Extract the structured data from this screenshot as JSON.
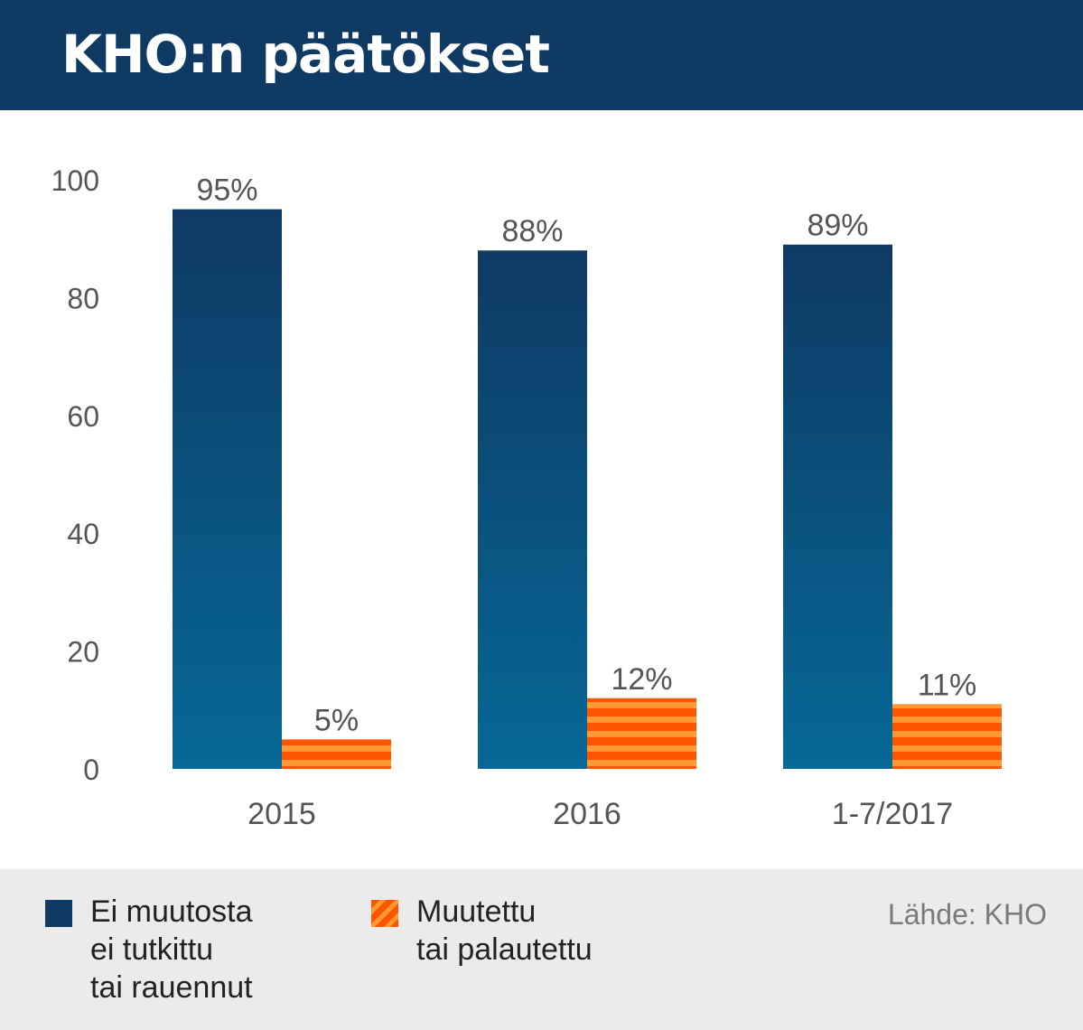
{
  "header": {
    "title": "KHO:n päätökset"
  },
  "chart_data": {
    "type": "bar",
    "categories": [
      "2015",
      "2016",
      "1-7/2017"
    ],
    "series": [
      {
        "name": "Ei muutosta ei tutkittu tai rauennut",
        "values": [
          95,
          88,
          89
        ],
        "labels": [
          "95%",
          "88%",
          "89%"
        ]
      },
      {
        "name": "Muutettu tai palautettu",
        "values": [
          5,
          12,
          11
        ],
        "labels": [
          "5%",
          "12%",
          "11%"
        ]
      }
    ],
    "ylim": [
      0,
      100
    ],
    "yticks": [
      "0",
      "20",
      "40",
      "60",
      "80",
      "100"
    ],
    "grid": false,
    "legend_position": "bottom"
  },
  "legend": {
    "items": [
      {
        "lines": [
          "Ei muutosta",
          "ei tutkittu",
          "tai rauennut"
        ],
        "color": "#0f3a64"
      },
      {
        "lines": [
          "Muutettu",
          "tai palautettu"
        ],
        "color": "#ff5500"
      }
    ]
  },
  "source": "Lähde: KHO"
}
